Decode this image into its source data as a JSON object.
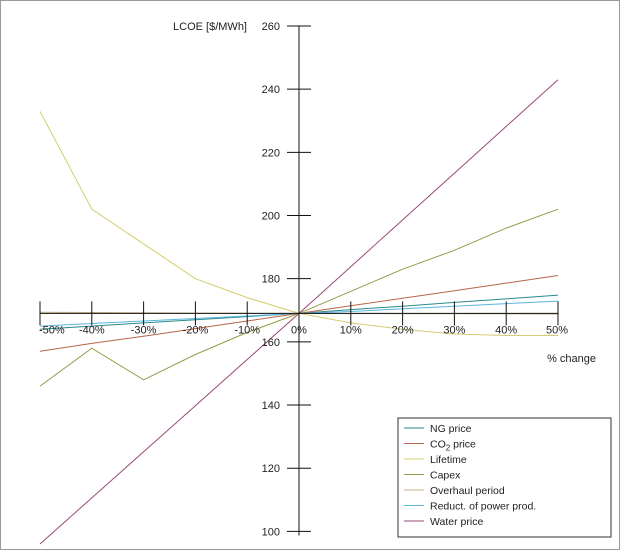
{
  "chart_data": {
    "type": "line",
    "title": "",
    "ylabel": "LCOE [$/MWh]",
    "xlabel": "% change",
    "ylim": [
      96,
      260
    ],
    "xlim": [
      -50,
      50
    ],
    "y_ticks": [
      {
        "value": 100,
        "label": "100"
      },
      {
        "value": 120,
        "label": "120"
      },
      {
        "value": 140,
        "label": "140"
      },
      {
        "value": 160,
        "label": "160"
      },
      {
        "value": 180,
        "label": "180"
      },
      {
        "value": 200,
        "label": "200"
      },
      {
        "value": 220,
        "label": "220"
      },
      {
        "value": 240,
        "label": "240"
      },
      {
        "value": 260,
        "label": "260"
      }
    ],
    "x_ticks": [
      {
        "value": -50,
        "label": "-50%"
      },
      {
        "value": -40,
        "label": "-40%"
      },
      {
        "value": -30,
        "label": "-30%"
      },
      {
        "value": -20,
        "label": "-20%"
      },
      {
        "value": -10,
        "label": "-10%"
      },
      {
        "value": 0,
        "label": "0%"
      },
      {
        "value": 10,
        "label": "10%"
      },
      {
        "value": 20,
        "label": "20%"
      },
      {
        "value": 30,
        "label": "30%"
      },
      {
        "value": 40,
        "label": "40%"
      },
      {
        "value": 50,
        "label": "50%"
      }
    ],
    "x_axis_crossing_y": 169,
    "legend_placement": "bottom-right",
    "series": [
      {
        "name": "NG price",
        "color": "#2a8a8a",
        "points": [
          [
            -50,
            164
          ],
          [
            -40,
            165
          ],
          [
            -30,
            166
          ],
          [
            -20,
            167
          ],
          [
            -10,
            168
          ],
          [
            0,
            169
          ],
          [
            10,
            170.2
          ],
          [
            20,
            171.3
          ],
          [
            30,
            172.5
          ],
          [
            40,
            173.6
          ],
          [
            50,
            174.8
          ]
        ]
      },
      {
        "name": "CO2 price",
        "name_main": "CO",
        "name_sub": "2",
        "name_rest": " price",
        "color": "#b8644a",
        "points": [
          [
            -50,
            157
          ],
          [
            -40,
            159.5
          ],
          [
            -30,
            161.8
          ],
          [
            -20,
            164.2
          ],
          [
            -10,
            166.6
          ],
          [
            0,
            169
          ],
          [
            10,
            171.4
          ],
          [
            20,
            173.8
          ],
          [
            30,
            176.2
          ],
          [
            40,
            178.6
          ],
          [
            50,
            181
          ]
        ]
      },
      {
        "name": "Lifetime",
        "color": "#d4cc70",
        "points": [
          [
            -50,
            233
          ],
          [
            -40,
            202
          ],
          [
            -30,
            191
          ],
          [
            -20,
            180
          ],
          [
            -10,
            174
          ],
          [
            0,
            169
          ],
          [
            10,
            166
          ],
          [
            20,
            164
          ],
          [
            30,
            162.5
          ],
          [
            40,
            162
          ],
          [
            50,
            162
          ]
        ]
      },
      {
        "name": "Capex",
        "color": "#9a9a4a",
        "points": [
          [
            -50,
            146
          ],
          [
            -40,
            158
          ],
          [
            -30,
            148
          ],
          [
            -20,
            156
          ],
          [
            -10,
            163
          ],
          [
            0,
            169
          ],
          [
            10,
            176
          ],
          [
            20,
            183
          ],
          [
            30,
            189
          ],
          [
            40,
            196
          ],
          [
            50,
            202
          ]
        ]
      },
      {
        "name": "Overhaul period",
        "color": "#c8b48a",
        "points": [
          [
            -50,
            169.4
          ],
          [
            -40,
            169.3
          ],
          [
            -30,
            169.2
          ],
          [
            -20,
            169.1
          ],
          [
            -10,
            169.05
          ],
          [
            0,
            169
          ],
          [
            10,
            168.95
          ],
          [
            20,
            168.9
          ],
          [
            30,
            168.9
          ],
          [
            40,
            168.85
          ],
          [
            50,
            168.8
          ]
        ]
      },
      {
        "name": "Reduct. of power prod.",
        "color": "#5ab4e0",
        "points": [
          [
            -50,
            165
          ],
          [
            -40,
            165.8
          ],
          [
            -30,
            166.6
          ],
          [
            -20,
            167.4
          ],
          [
            -10,
            168.2
          ],
          [
            0,
            169
          ],
          [
            10,
            169.6
          ],
          [
            20,
            170.5
          ],
          [
            30,
            171.3
          ],
          [
            40,
            172.1
          ],
          [
            50,
            172.9
          ]
        ]
      },
      {
        "name": "Water price",
        "color": "#9a4a7a",
        "points": [
          [
            -50,
            96
          ],
          [
            -40,
            110.6
          ],
          [
            -30,
            125.2
          ],
          [
            -20,
            139.8
          ],
          [
            -10,
            154.4
          ],
          [
            0,
            169
          ],
          [
            10,
            183.8
          ],
          [
            20,
            198.6
          ],
          [
            30,
            213.4
          ],
          [
            40,
            228.2
          ],
          [
            50,
            243
          ]
        ]
      }
    ]
  }
}
